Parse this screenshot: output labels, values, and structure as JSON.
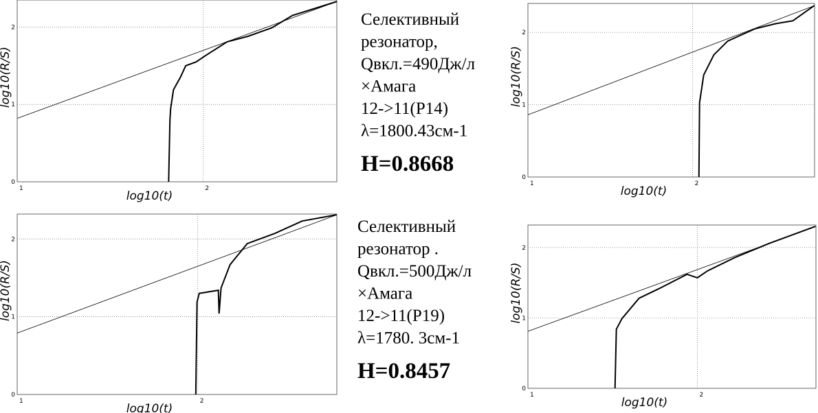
{
  "chart_data": [
    {
      "type": "line",
      "xlabel": "log10(t)",
      "ylabel": "log10(R/S)",
      "grid": true,
      "xlim": [
        1,
        2.72
      ],
      "ylim": [
        0,
        2.35
      ],
      "xticks": [
        1,
        2
      ],
      "yticks": [
        0,
        1,
        2
      ],
      "series": [
        {
          "color": "#000000",
          "x": [
            1.815,
            1.822,
            1.826,
            1.841,
            1.878,
            1.907,
            1.963,
            2.019,
            2.13,
            2.241,
            2.37,
            2.481,
            2.72
          ],
          "values": [
            0,
            0.8,
            0.95,
            1.19,
            1.35,
            1.5,
            1.55,
            1.64,
            1.81,
            1.88,
            1.99,
            2.15,
            2.33
          ]
        },
        {
          "color": "#000000",
          "x": [
            1,
            2.72
          ],
          "values": [
            0.82,
            2.33
          ]
        }
      ]
    },
    {
      "type": "line",
      "xlabel": "log10(t)",
      "ylabel": "log10(R/S)",
      "grid": true,
      "xlim": [
        1,
        2.74
      ],
      "ylim": [
        0,
        2.4
      ],
      "xticks": [
        1,
        2
      ],
      "yticks": [
        0,
        1,
        2
      ],
      "series": [
        {
          "color": "#000000",
          "x": [
            2.038,
            2.042,
            2.067,
            2.129,
            2.213,
            2.379,
            2.504,
            2.608,
            2.738
          ],
          "values": [
            0,
            1.03,
            1.41,
            1.69,
            1.88,
            2.05,
            2.12,
            2.16,
            2.37
          ]
        },
        {
          "color": "#000000",
          "x": [
            1,
            2.74
          ],
          "values": [
            0.86,
            2.37
          ]
        }
      ]
    },
    {
      "type": "line",
      "xlabel": "log10(t)",
      "ylabel": "log10(R/S)",
      "grid": true,
      "xlim": [
        1,
        2.77
      ],
      "ylim": [
        0,
        2.32
      ],
      "xticks": [
        1,
        2
      ],
      "yticks": [
        0,
        1,
        2
      ],
      "series": [
        {
          "color": "#000000",
          "x": [
            1.989,
            1.996,
            2.008,
            2.114,
            2.118,
            2.129,
            2.179,
            2.274,
            2.426,
            2.578,
            2.768
          ],
          "values": [
            0,
            1.19,
            1.3,
            1.34,
            1.04,
            1.37,
            1.67,
            1.94,
            2.07,
            2.23,
            2.31
          ]
        },
        {
          "color": "#000000",
          "x": [
            1,
            2.77
          ],
          "values": [
            0.79,
            2.31
          ]
        }
      ]
    },
    {
      "type": "line",
      "xlabel": "log10(t)",
      "ylabel": "log10(R/S)",
      "grid": true,
      "xlim": [
        1,
        2.7
      ],
      "ylim": [
        0,
        2.32
      ],
      "xticks": [
        1,
        2
      ],
      "yticks": [
        0,
        1,
        2
      ],
      "series": [
        {
          "color": "#000000",
          "x": [
            1.514,
            1.522,
            1.555,
            1.656,
            1.777,
            1.939,
            2.0,
            2.061,
            2.223,
            2.425,
            2.696
          ],
          "values": [
            0,
            0.84,
            0.99,
            1.28,
            1.42,
            1.62,
            1.57,
            1.67,
            1.86,
            2.06,
            2.3
          ]
        },
        {
          "color": "#000000",
          "x": [
            1,
            2.7
          ],
          "values": [
            0.81,
            2.3
          ]
        }
      ]
    }
  ],
  "captions": [
    {
      "lines": [
        "Селективный",
        "резонатор,",
        "Qвкл.=490Дж/л",
        "×Амага",
        "12->11(P14)",
        "λ=1800.43см-1"
      ],
      "result": "H=0.8668"
    },
    {
      "lines": [
        "Селективный",
        "резонатор .",
        "Qвкл.=500Дж/л",
        "×Амага",
        "12->11(P19)",
        "λ=1780. 3см-1"
      ],
      "result": "H=0.8457"
    }
  ]
}
